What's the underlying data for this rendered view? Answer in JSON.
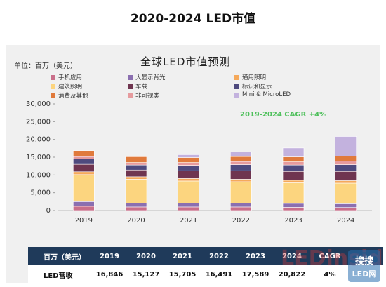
{
  "page_title": "2020-2024 LED市值",
  "chart_data": {
    "type": "bar",
    "stacked": true,
    "title": "全球LED市值预测",
    "unit_label": "单位：百万（美元）",
    "annotation": "2019-2024 CAGR +4%",
    "categories": [
      "2019",
      "2020",
      "2021",
      "2022",
      "2023",
      "2024"
    ],
    "ylim": [
      0,
      30000
    ],
    "y_ticks": [
      "0",
      "5,000",
      "10,000",
      "15,000",
      "20,000",
      "25,000",
      "30,000"
    ],
    "y_tick_values": [
      0,
      5000,
      10000,
      15000,
      20000,
      25000,
      30000
    ],
    "grid": false,
    "legend_position": "top",
    "series": [
      {
        "name": "手机应用",
        "color": "#c96f8a",
        "values": [
          1200,
          1000,
          1000,
          1000,
          900,
          850
        ]
      },
      {
        "name": "大显示背光",
        "color": "#8b6fb0",
        "values": [
          1300,
          1100,
          1100,
          1100,
          1100,
          1050
        ]
      },
      {
        "name": "建筑照明",
        "color": "#fcd57f",
        "values": [
          7600,
          6700,
          6200,
          6000,
          5800,
          5800
        ]
      },
      {
        "name": "通用照明",
        "color": "#f5a95b",
        "values": [
          800,
          700,
          700,
          700,
          700,
          700
        ]
      },
      {
        "name": "车载",
        "color": "#6f3550",
        "values": [
          2100,
          1900,
          2200,
          2400,
          2500,
          2600
        ]
      },
      {
        "name": "标识和显示",
        "color": "#4e4a7e",
        "values": [
          1500,
          1400,
          1500,
          1700,
          1800,
          1900
        ]
      },
      {
        "name": "非可视类",
        "color": "#e69b9e",
        "values": [
          700,
          700,
          800,
          900,
          900,
          1000
        ]
      },
      {
        "name": "消费及其他",
        "color": "#e07a3c",
        "values": [
          1646,
          1627,
          1405,
          1391,
          1389,
          1422
        ]
      },
      {
        "name": "Mini & MicroLED",
        "color": "#c3b2de",
        "values": [
          0,
          0,
          800,
          1300,
          2500,
          5500
        ]
      }
    ]
  },
  "legend_layout": [
    {
      "series_index": 0,
      "col": 0,
      "row": 0
    },
    {
      "series_index": 1,
      "col": 1,
      "row": 0
    },
    {
      "series_index": 3,
      "col": 2,
      "row": 0
    },
    {
      "series_index": 2,
      "col": 0,
      "row": 1
    },
    {
      "series_index": 4,
      "col": 1,
      "row": 1
    },
    {
      "series_index": 5,
      "col": 2,
      "row": 1
    },
    {
      "series_index": 7,
      "col": 0,
      "row": 2
    },
    {
      "series_index": 6,
      "col": 1,
      "row": 2
    },
    {
      "series_index": 8,
      "col": 2,
      "row": 2
    }
  ],
  "table": {
    "header_label": "百万（美元）",
    "years": [
      "2019",
      "2020",
      "2021",
      "2022",
      "2023",
      "2024"
    ],
    "cagr_header": "CAGR",
    "row_label": "LED营收",
    "values": [
      "16,846",
      "15,127",
      "15,705",
      "16,491",
      "17,589",
      "20,822"
    ],
    "cagr_value": "4%"
  },
  "watermark": {
    "brand": "LEDinside",
    "badge_top": "搜搜",
    "badge_bottom": "LED网"
  }
}
